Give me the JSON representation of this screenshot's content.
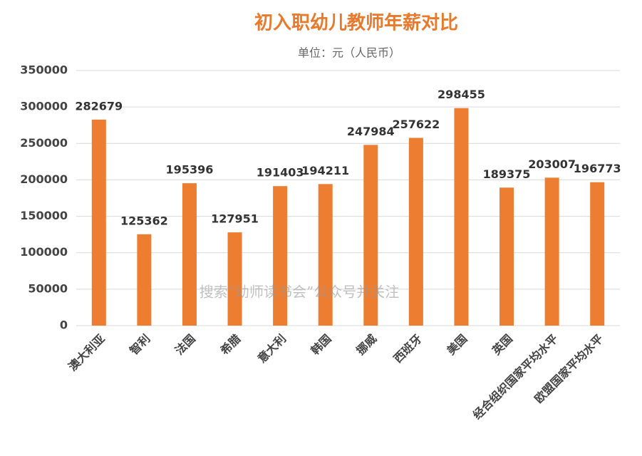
{
  "chart_data": {
    "type": "bar",
    "title": "初入职幼儿教师年薪对比",
    "subtitle": "单位：元（人民币）",
    "categories": [
      "澳大利亚",
      "智利",
      "法国",
      "希腊",
      "意大利",
      "韩国",
      "挪威",
      "西班牙",
      "美国",
      "英国",
      "经合组织国家平均水平",
      "欧盟国家平均水平"
    ],
    "values": [
      282679,
      125362,
      195396,
      127951,
      191403,
      194211,
      247984,
      257622,
      298455,
      189375,
      203007,
      196773
    ],
    "color": "#ed7d31",
    "ylim": [
      0,
      350000
    ],
    "yticks": [
      0,
      50000,
      100000,
      150000,
      200000,
      250000,
      300000,
      350000
    ],
    "grid": true,
    "watermark": "搜索“幼师读书会”公众号并关注"
  }
}
